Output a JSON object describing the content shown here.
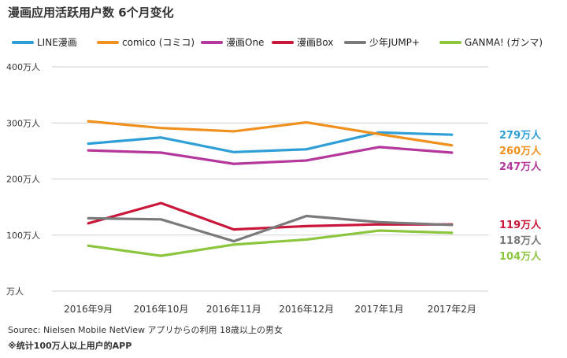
{
  "title": "漫画应用活跃用户数 6个月变化",
  "source": "Sourec: Nielsen Mobile NetView アプリからの利用 18歳以上の男女",
  "note": "※统计100万人以上用户的APP",
  "chart_data": {
    "type": "line",
    "categories": [
      "2016年9月",
      "2016年10月",
      "2016年11月",
      "2016年12月",
      "2017年1月",
      "2017年2月"
    ],
    "ylim": [
      0,
      400
    ],
    "yticks": [
      0,
      100,
      200,
      300,
      400
    ],
    "ytick_labels": [
      "万人",
      "100万人",
      "200万人",
      "300万人",
      "400万人"
    ],
    "grid": true,
    "legend_position": "top",
    "series": [
      {
        "name": "LINE漫画",
        "color": "#2e9fd6",
        "values": [
          263,
          274,
          248,
          253,
          283,
          279
        ],
        "end_label": "279万人"
      },
      {
        "name": "comico (コミコ)",
        "color": "#f0901e",
        "values": [
          303,
          291,
          285,
          301,
          280,
          260
        ],
        "end_label": "260万人"
      },
      {
        "name": "漫画One",
        "color": "#b4389c",
        "values": [
          251,
          247,
          227,
          233,
          257,
          247
        ],
        "end_label": "247万人"
      },
      {
        "name": "漫画Box",
        "color": "#c8173a",
        "values": [
          121,
          157,
          110,
          116,
          119,
          119
        ],
        "end_label": "119万人"
      },
      {
        "name": "少年JUMP+",
        "color": "#7a7a7a",
        "values": [
          130,
          128,
          89,
          134,
          123,
          118
        ],
        "end_label": "118万人"
      },
      {
        "name": "GANMA! (ガンマ)",
        "color": "#8cc63f",
        "values": [
          81,
          63,
          83,
          92,
          108,
          104
        ],
        "end_label": "104万人"
      }
    ]
  }
}
